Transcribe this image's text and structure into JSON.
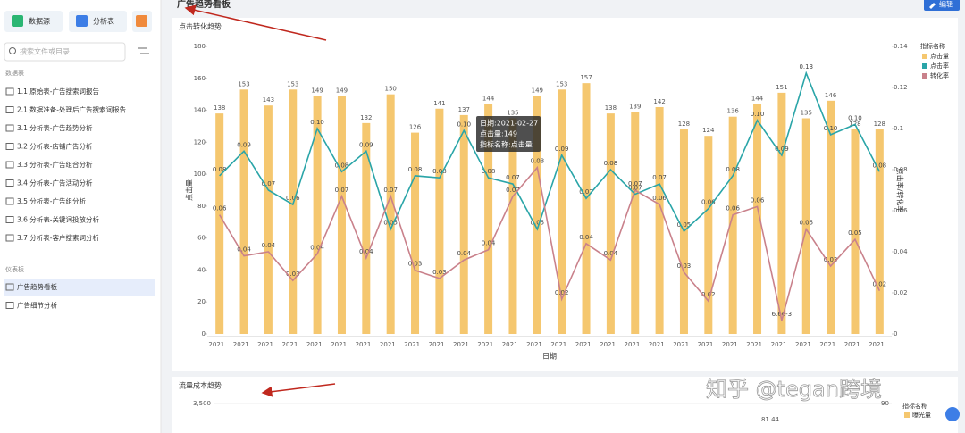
{
  "sidebar": {
    "buttons": [
      "数据源",
      "分析表"
    ],
    "search_placeholder": "搜索文件或目录",
    "sections": [
      {
        "title": "数据表",
        "items": [
          "1.1 原始表-广告搜索词报告",
          "2.1 数据准备-处理后广告搜索词报告",
          "3.1 分析表-广告趋势分析",
          "3.2 分析表-店铺广告分析",
          "3.3 分析表-广告组合分析",
          "3.4 分析表-广告活动分析",
          "3.5 分析表-广告组分析",
          "3.6 分析表-关键词投放分析",
          "3.7 分析表-客户搜索词分析"
        ]
      },
      {
        "title": "仪表板",
        "items": [
          "广告趋势看板",
          "广告细节分析"
        ]
      }
    ]
  },
  "header": {
    "title": "广告趋势看板",
    "edit": "编辑"
  },
  "watermark": "知乎 @tegan跨境",
  "chart_data": [
    {
      "type": "combo",
      "title": "点击转化趋势",
      "x_label": "日期",
      "y_label": "点击量",
      "y2_label": "点击率/转化率",
      "categories": [
        "2021...",
        "2021...",
        "2021...",
        "2021...",
        "2021...",
        "2021...",
        "2021...",
        "2021...",
        "2021...",
        "2021...",
        "2021...",
        "2021...",
        "2021...",
        "2021...",
        "2021...",
        "2021...",
        "2021...",
        "2021...",
        "2021...",
        "2021...",
        "2021...",
        "2021...",
        "2021...",
        "2021...",
        "2021...",
        "2021...",
        "2021...",
        "2021..."
      ],
      "ylim": [
        0,
        180
      ],
      "yticks": [
        0,
        20,
        40,
        60,
        80,
        100,
        120,
        140,
        160,
        180
      ],
      "y2lim": [
        0,
        0.14
      ],
      "y2ticks": [
        0,
        0.02,
        0.04,
        0.06,
        0.08,
        0.1,
        0.12,
        0.14
      ],
      "legend_title": "指标名称",
      "legend": "right",
      "series": [
        {
          "name": "点击量",
          "type": "bar",
          "color": "#f5c76f",
          "values": [
            138,
            153,
            143,
            153,
            149,
            149,
            132,
            150,
            126,
            141,
            137,
            144,
            135,
            149,
            153,
            157,
            138,
            139,
            142,
            128,
            124,
            136,
            144,
            151,
            135,
            146,
            128,
            128
          ]
        },
        {
          "name": "点击率",
          "type": "line",
          "axis": "y2",
          "color": "#2aa5a8",
          "values": [
            0.077,
            0.089,
            0.07,
            0.063,
            0.1,
            0.079,
            0.089,
            0.051,
            0.077,
            0.076,
            0.099,
            0.076,
            0.073,
            0.051,
            0.087,
            0.066,
            0.08,
            0.068,
            0.073,
            0.05,
            0.061,
            0.077,
            0.104,
            0.087,
            0.127,
            0.097,
            0.102,
            0.079
          ],
          "value_labels": [
            "0.08",
            "0.09",
            "0.07",
            "0.06",
            "0.10",
            "0.08",
            "0.09",
            "0.05",
            "0.08",
            "0.08",
            "0.10",
            "0.08",
            "0.07",
            "0.05",
            "0.09",
            "0.07",
            "0.08",
            "0.07",
            "0.07",
            "0.05",
            "0.06",
            "0.08",
            "0.10",
            "0.09",
            "0.13",
            "0.10",
            "0.10",
            "0.08"
          ]
        },
        {
          "name": "转化率",
          "type": "line",
          "axis": "y2",
          "color": "#c9818b",
          "values": [
            0.058,
            0.038,
            0.04,
            0.026,
            0.039,
            0.067,
            0.037,
            0.067,
            0.031,
            0.027,
            0.036,
            0.041,
            0.067,
            0.081,
            0.017,
            0.044,
            0.036,
            0.07,
            0.063,
            0.03,
            0.016,
            0.058,
            0.062,
            0.0066,
            0.051,
            0.033,
            0.046,
            0.021
          ],
          "value_labels": [
            "0.06",
            "0.04",
            "0.04",
            "0.03",
            "0.04",
            "0.07",
            "0.04",
            "0.07",
            "0.03",
            "0.03",
            "0.04",
            "0.04",
            "0.07",
            "0.08",
            "0.02",
            "0.04",
            "0.04",
            "0.07",
            "0.06",
            "0.03",
            "0.02",
            "0.06",
            "0.06",
            "6.6e-3",
            "0.05",
            "0.03",
            "0.05",
            "0.02"
          ]
        }
      ],
      "tooltip": [
        "日期:2021-02-27",
        "点击量:149",
        "指标名称:点击量"
      ]
    },
    {
      "type": "combo",
      "title": "流量成本趋势",
      "yticks": [
        {
          "value": 3500,
          "label": "3,500"
        }
      ],
      "y2ticks": [
        90
      ],
      "annotations": [
        "81.44"
      ],
      "legend_title": "指标名称",
      "series": [
        {
          "name": "曝光量",
          "color": "#f5c76f"
        }
      ]
    }
  ]
}
